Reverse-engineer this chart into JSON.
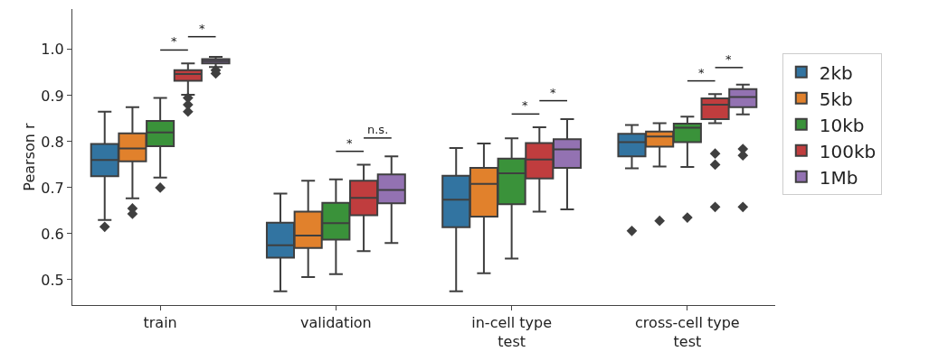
{
  "chart_data": {
    "type": "box",
    "ylabel": "Pearson r",
    "categories": [
      "train",
      "validation",
      "in-cell type\ntest",
      "cross-cell type\ntest"
    ],
    "ylim": [
      0.445,
      1.088
    ],
    "yticks": [
      0.5,
      0.6,
      0.7,
      0.8,
      0.9,
      {
        "value": 1.0,
        "label": "1.0"
      }
    ],
    "grid": false,
    "legend": "right",
    "marker": "diamond",
    "series": [
      {
        "name": "2kb",
        "color": "#3274a1",
        "boxes": [
          {
            "low": 0.63,
            "q1": 0.725,
            "median": 0.76,
            "q3": 0.795,
            "high": 0.865,
            "outliers": [
              0.615
            ]
          },
          {
            "low": 0.475,
            "q1": 0.548,
            "median": 0.575,
            "q3": 0.624,
            "high": 0.687
          },
          {
            "low": 0.475,
            "q1": 0.614,
            "median": 0.674,
            "q3": 0.726,
            "high": 0.786
          },
          {
            "low": 0.742,
            "q1": 0.768,
            "median": 0.799,
            "q3": 0.817,
            "high": 0.836,
            "outliers": [
              0.606
            ]
          }
        ]
      },
      {
        "name": "5kb",
        "color": "#e1812c",
        "boxes": [
          {
            "low": 0.677,
            "q1": 0.757,
            "median": 0.785,
            "q3": 0.818,
            "high": 0.875,
            "outliers": [
              0.655,
              0.643
            ]
          },
          {
            "low": 0.506,
            "q1": 0.569,
            "median": 0.596,
            "q3": 0.648,
            "high": 0.715
          },
          {
            "low": 0.514,
            "q1": 0.637,
            "median": 0.708,
            "q3": 0.743,
            "high": 0.796
          },
          {
            "low": 0.746,
            "q1": 0.789,
            "median": 0.811,
            "q3": 0.822,
            "high": 0.84,
            "outliers": [
              0.628
            ]
          }
        ]
      },
      {
        "name": "10kb",
        "color": "#3a923a",
        "boxes": [
          {
            "low": 0.722,
            "q1": 0.79,
            "median": 0.82,
            "q3": 0.845,
            "high": 0.895,
            "outliers": [
              0.7
            ]
          },
          {
            "low": 0.512,
            "q1": 0.587,
            "median": 0.623,
            "q3": 0.667,
            "high": 0.718
          },
          {
            "low": 0.546,
            "q1": 0.664,
            "median": 0.731,
            "q3": 0.763,
            "high": 0.807
          },
          {
            "low": 0.745,
            "q1": 0.799,
            "median": 0.83,
            "q3": 0.839,
            "high": 0.854,
            "outliers": [
              0.635
            ]
          }
        ]
      },
      {
        "name": "100kb",
        "color": "#c03d3e",
        "boxes": [
          {
            "low": 0.902,
            "q1": 0.932,
            "median": 0.947,
            "q3": 0.955,
            "high": 0.97,
            "outliers": [
              0.895,
              0.88,
              0.865
            ]
          },
          {
            "low": 0.562,
            "q1": 0.64,
            "median": 0.678,
            "q3": 0.715,
            "high": 0.75
          },
          {
            "low": 0.648,
            "q1": 0.72,
            "median": 0.761,
            "q3": 0.797,
            "high": 0.831
          },
          {
            "low": 0.84,
            "q1": 0.849,
            "median": 0.88,
            "q3": 0.894,
            "high": 0.903,
            "outliers": [
              0.774,
              0.75,
              0.658
            ]
          }
        ]
      },
      {
        "name": "1Mb",
        "color": "#9372b2",
        "boxes": [
          {
            "low": 0.962,
            "q1": 0.97,
            "median": 0.975,
            "q3": 0.979,
            "high": 0.984,
            "outliers": [
              0.955,
              0.948
            ]
          },
          {
            "low": 0.58,
            "q1": 0.666,
            "median": 0.695,
            "q3": 0.729,
            "high": 0.768
          },
          {
            "low": 0.653,
            "q1": 0.743,
            "median": 0.783,
            "q3": 0.805,
            "high": 0.849
          },
          {
            "low": 0.859,
            "q1": 0.875,
            "median": 0.897,
            "q3": 0.914,
            "high": 0.924,
            "outliers": [
              0.784,
              0.77,
              0.658
            ]
          }
        ]
      }
    ],
    "annotations": [
      "*",
      "*",
      "*",
      "n.s.",
      "*",
      "*",
      "*",
      "*"
    ]
  }
}
